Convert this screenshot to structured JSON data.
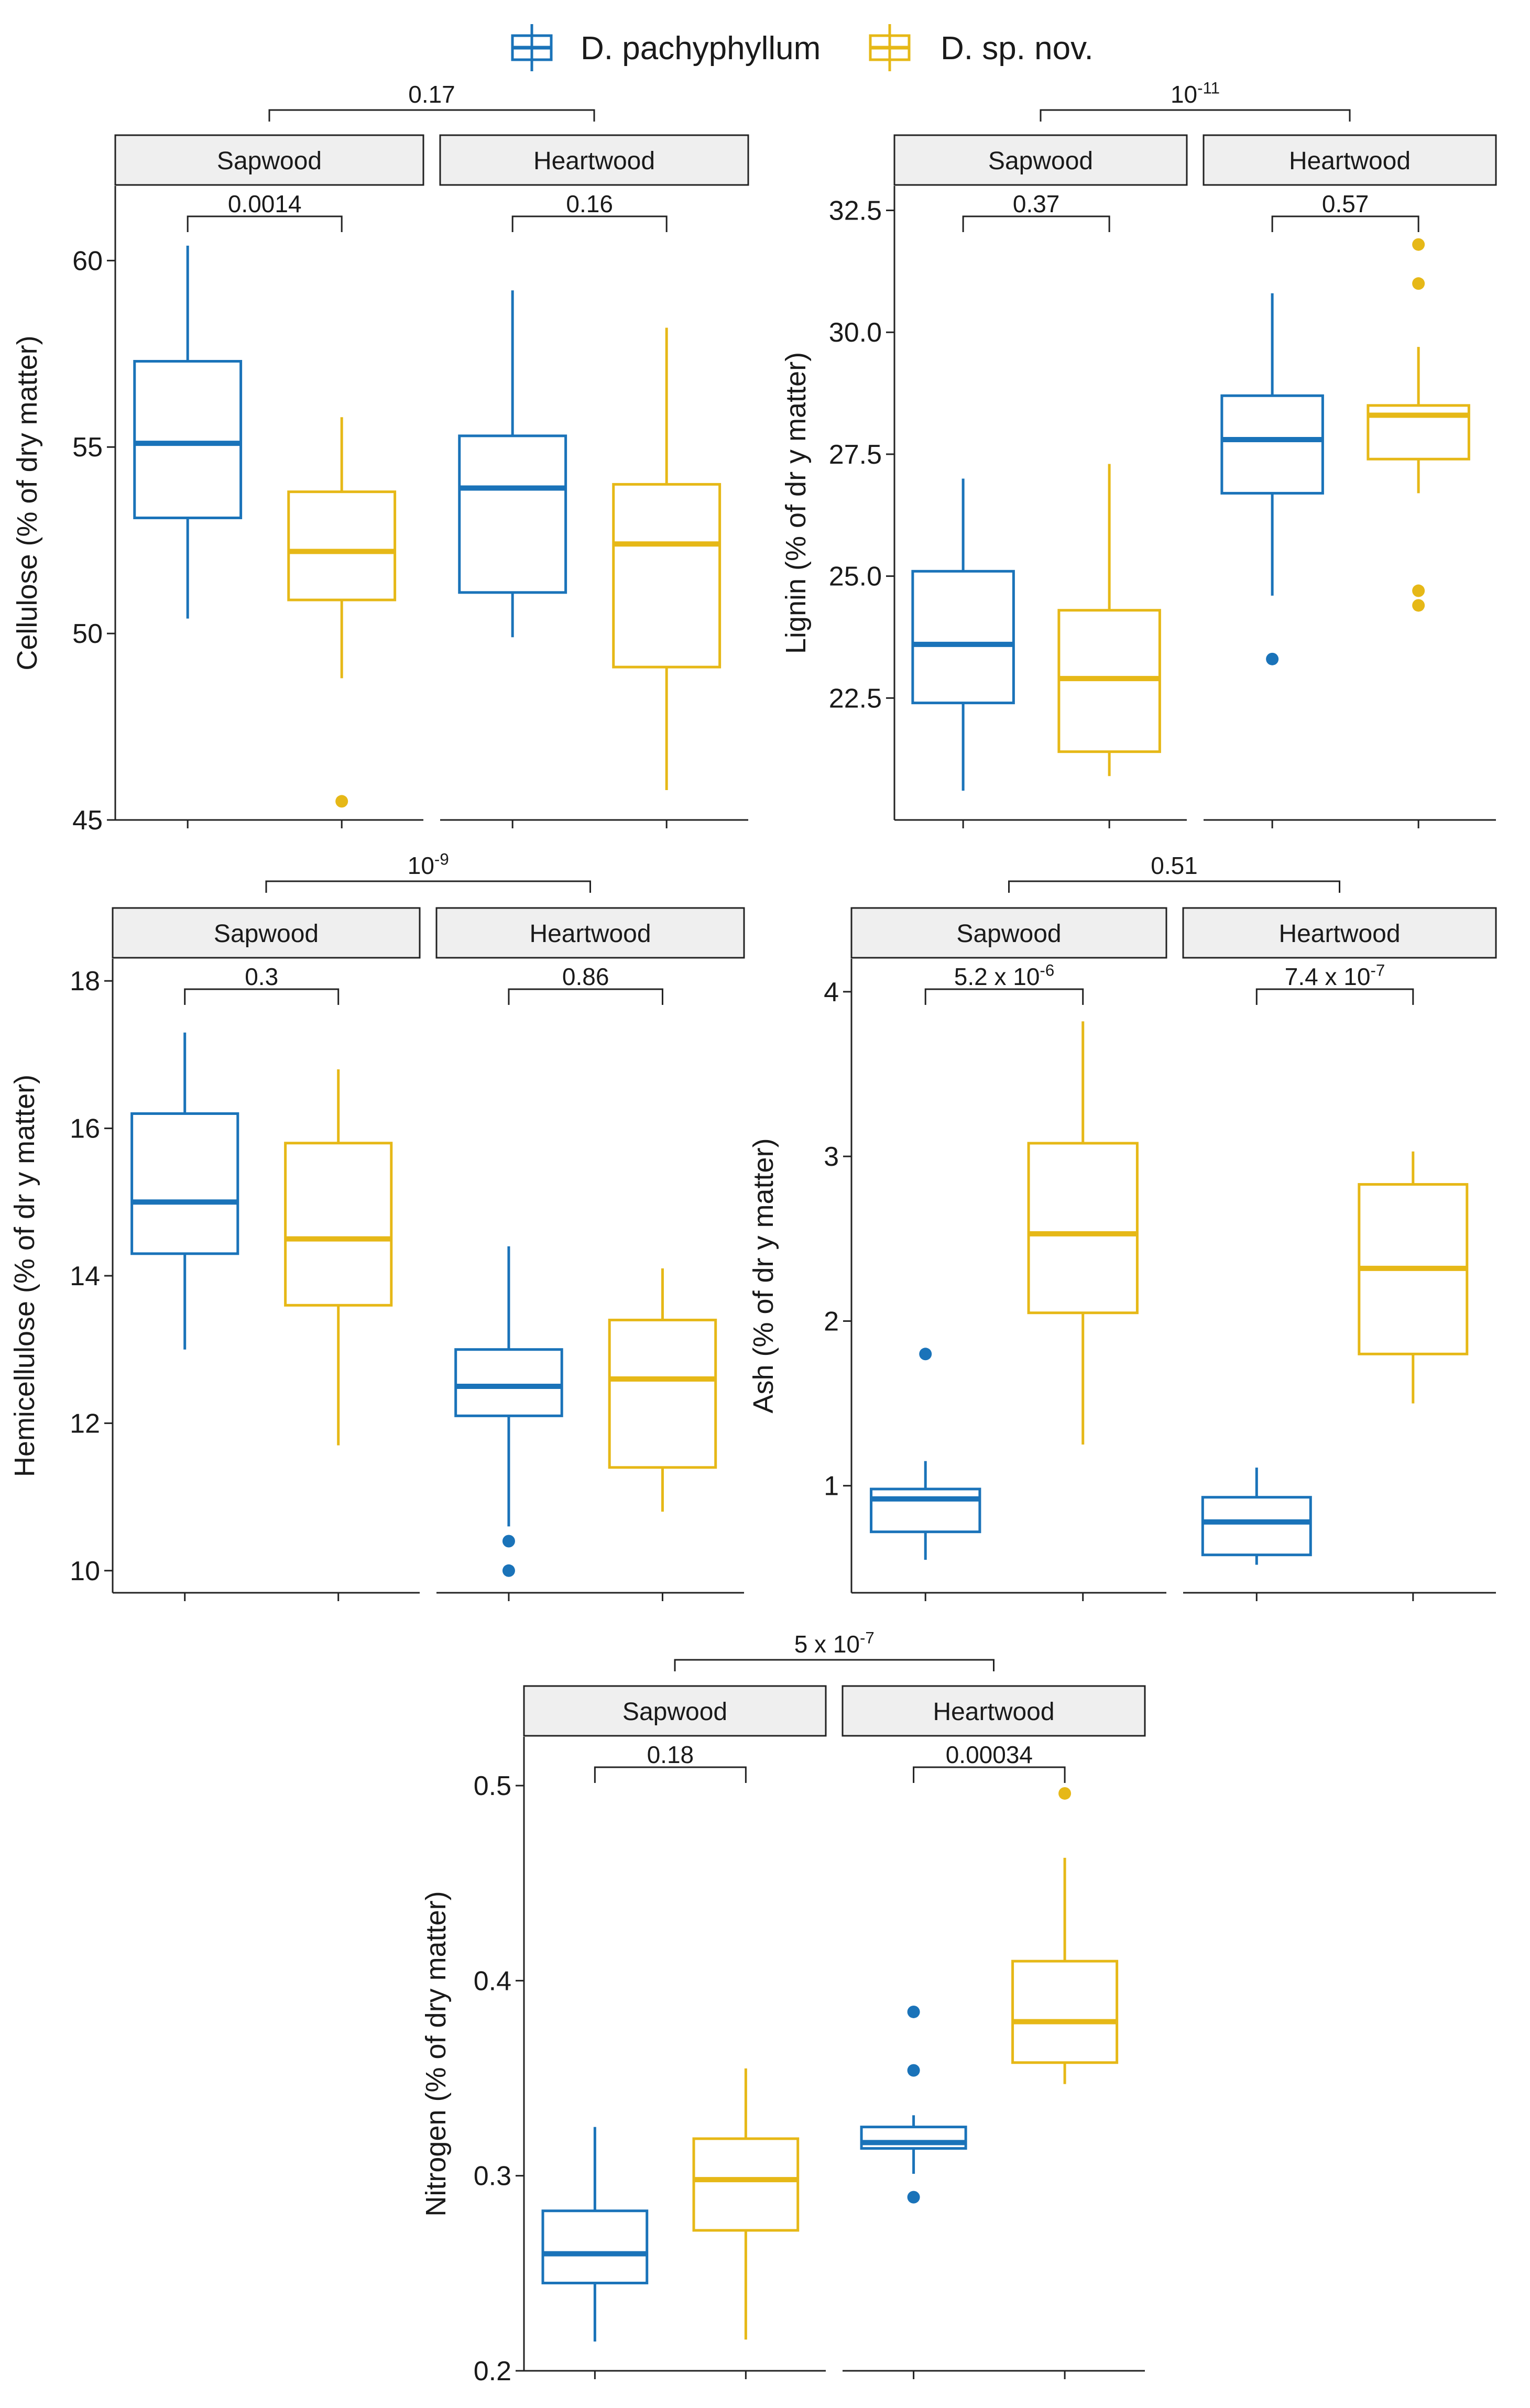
{
  "legend": {
    "items": [
      {
        "label": "D. pachyphyllum",
        "color": "#1a73b9"
      },
      {
        "label": "D. sp. nov.",
        "color": "#e6b817"
      }
    ]
  },
  "colors": {
    "pachy": "#1a73b9",
    "spnov": "#e6b817"
  },
  "chart_data": [
    {
      "type": "box",
      "ylabel": "Cellulose (% of dry matter)",
      "ylim": [
        45,
        62
      ],
      "yticks": [
        45,
        50,
        55,
        60
      ],
      "ytick_labels": [
        "45",
        "50",
        "55",
        "60"
      ],
      "facets": [
        "Sapwood",
        "Heartwood"
      ],
      "series": [
        "D. pachyphyllum",
        "D. sp. nov."
      ],
      "top_pvalue": "0.17",
      "facet_pvalues": [
        "0.0014",
        "0.16"
      ],
      "boxes": [
        {
          "facet": "Sapwood",
          "series": "D. pachyphyllum",
          "min": 50.4,
          "q1": 53.1,
          "median": 55.1,
          "q3": 57.3,
          "max": 60.4,
          "outliers": []
        },
        {
          "facet": "Sapwood",
          "series": "D. sp. nov.",
          "min": 48.8,
          "q1": 50.9,
          "median": 52.2,
          "q3": 53.8,
          "max": 55.8,
          "outliers": [
            45.5
          ]
        },
        {
          "facet": "Heartwood",
          "series": "D. pachyphyllum",
          "min": 49.9,
          "q1": 51.1,
          "median": 53.9,
          "q3": 55.3,
          "max": 59.2,
          "outliers": []
        },
        {
          "facet": "Heartwood",
          "series": "D. sp. nov.",
          "min": 45.8,
          "q1": 49.1,
          "median": 52.4,
          "q3": 54.0,
          "max": 58.2,
          "outliers": []
        }
      ]
    },
    {
      "type": "box",
      "ylabel": "Lignin (% of dr y matter)",
      "ylim": [
        20.0,
        33.0
      ],
      "yticks": [
        22.5,
        25.0,
        27.5,
        30.0,
        32.5
      ],
      "ytick_labels": [
        "22.5",
        "25.0",
        "27.5",
        "30.0",
        "32.5"
      ],
      "facets": [
        "Sapwood",
        "Heartwood"
      ],
      "series": [
        "D. pachyphyllum",
        "D. sp. nov."
      ],
      "top_pvalue": {
        "base": "10",
        "exp": "-11"
      },
      "facet_pvalues": [
        "0.37",
        "0.57"
      ],
      "boxes": [
        {
          "facet": "Sapwood",
          "series": "D. pachyphyllum",
          "min": 20.6,
          "q1": 22.4,
          "median": 23.6,
          "q3": 25.1,
          "max": 27.0,
          "outliers": []
        },
        {
          "facet": "Sapwood",
          "series": "D. sp. nov.",
          "min": 20.9,
          "q1": 21.4,
          "median": 22.9,
          "q3": 24.3,
          "max": 27.3,
          "outliers": []
        },
        {
          "facet": "Heartwood",
          "series": "D. pachyphyllum",
          "min": 24.6,
          "q1": 26.7,
          "median": 27.8,
          "q3": 28.7,
          "max": 30.8,
          "outliers": [
            23.3
          ]
        },
        {
          "facet": "Heartwood",
          "series": "D. sp. nov.",
          "min": 26.7,
          "q1": 27.4,
          "median": 28.3,
          "q3": 28.5,
          "max": 29.7,
          "outliers": [
            31.8,
            31.0,
            24.7,
            24.4
          ]
        }
      ]
    },
    {
      "type": "box",
      "ylabel": "Hemicellulose (% of dr y matter)",
      "ylim": [
        9.7,
        18.3
      ],
      "yticks": [
        10,
        12,
        14,
        16,
        18
      ],
      "ytick_labels": [
        "10",
        "12",
        "14",
        "16",
        "18"
      ],
      "facets": [
        "Sapwood",
        "Heartwood"
      ],
      "series": [
        "D. pachyphyllum",
        "D. sp. nov."
      ],
      "top_pvalue": {
        "base": "10",
        "exp": "-9"
      },
      "facet_pvalues": [
        "0.3",
        "0.86"
      ],
      "boxes": [
        {
          "facet": "Sapwood",
          "series": "D. pachyphyllum",
          "min": 13.0,
          "q1": 14.3,
          "median": 15.0,
          "q3": 16.2,
          "max": 17.3,
          "outliers": []
        },
        {
          "facet": "Sapwood",
          "series": "D. sp. nov.",
          "min": 11.7,
          "q1": 13.6,
          "median": 14.5,
          "q3": 15.8,
          "max": 16.8,
          "outliers": []
        },
        {
          "facet": "Heartwood",
          "series": "D. pachyphyllum",
          "min": 10.6,
          "q1": 12.1,
          "median": 12.5,
          "q3": 13.0,
          "max": 14.4,
          "outliers": [
            10.4,
            10.0
          ]
        },
        {
          "facet": "Heartwood",
          "series": "D. sp. nov.",
          "min": 10.8,
          "q1": 11.4,
          "median": 12.6,
          "q3": 13.4,
          "max": 14.1,
          "outliers": []
        }
      ]
    },
    {
      "type": "box",
      "ylabel": "Ash (% of dr y matter)",
      "ylim": [
        0.35,
        4.2
      ],
      "yticks": [
        1,
        2,
        3,
        4
      ],
      "ytick_labels": [
        "1",
        "2",
        "3",
        "4"
      ],
      "facets": [
        "Sapwood",
        "Heartwood"
      ],
      "series": [
        "D. pachyphyllum",
        "D. sp. nov."
      ],
      "top_pvalue": "0.51",
      "facet_pvalues": [
        {
          "base": "5.2 x 10",
          "exp": "-6"
        },
        {
          "base": "7.4 x 10",
          "exp": "-7"
        }
      ],
      "boxes": [
        {
          "facet": "Sapwood",
          "series": "D. pachyphyllum",
          "min": 0.55,
          "q1": 0.72,
          "median": 0.92,
          "q3": 0.98,
          "max": 1.15,
          "outliers": [
            1.8
          ]
        },
        {
          "facet": "Sapwood",
          "series": "D. sp. nov.",
          "min": 1.25,
          "q1": 2.05,
          "median": 2.53,
          "q3": 3.08,
          "max": 3.82,
          "outliers": []
        },
        {
          "facet": "Heartwood",
          "series": "D. pachyphyllum",
          "min": 0.52,
          "q1": 0.58,
          "median": 0.78,
          "q3": 0.93,
          "max": 1.11,
          "outliers": []
        },
        {
          "facet": "Heartwood",
          "series": "D. sp. nov.",
          "min": 1.5,
          "q1": 1.8,
          "median": 2.32,
          "q3": 2.83,
          "max": 3.03,
          "outliers": []
        }
      ]
    },
    {
      "type": "box",
      "ylabel": "Nitrogen (% of dry matter)",
      "ylim": [
        0.2,
        0.525
      ],
      "yticks": [
        0.2,
        0.3,
        0.4,
        0.5
      ],
      "ytick_labels": [
        "0.2",
        "0.3",
        "0.4",
        "0.5"
      ],
      "facets": [
        "Sapwood",
        "Heartwood"
      ],
      "series": [
        "D. pachyphyllum",
        "D. sp. nov."
      ],
      "top_pvalue": {
        "base": "5 x 10",
        "exp": "-7"
      },
      "facet_pvalues": [
        "0.18",
        "0.00034"
      ],
      "boxes": [
        {
          "facet": "Sapwood",
          "series": "D. pachyphyllum",
          "min": 0.215,
          "q1": 0.245,
          "median": 0.26,
          "q3": 0.282,
          "max": 0.325,
          "outliers": []
        },
        {
          "facet": "Sapwood",
          "series": "D. sp. nov.",
          "min": 0.216,
          "q1": 0.272,
          "median": 0.298,
          "q3": 0.319,
          "max": 0.355,
          "outliers": []
        },
        {
          "facet": "Heartwood",
          "series": "D. pachyphyllum",
          "min": 0.301,
          "q1": 0.314,
          "median": 0.317,
          "q3": 0.325,
          "max": 0.331,
          "outliers": [
            0.384,
            0.354,
            0.289
          ]
        },
        {
          "facet": "Heartwood",
          "series": "D. sp. nov.",
          "min": 0.347,
          "q1": 0.358,
          "median": 0.379,
          "q3": 0.41,
          "max": 0.463,
          "outliers": [
            0.496
          ]
        }
      ]
    }
  ]
}
